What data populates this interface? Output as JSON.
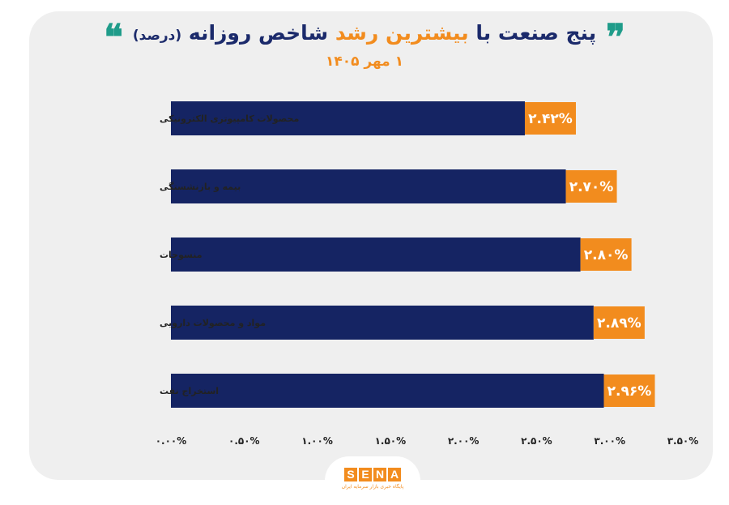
{
  "title": {
    "part1": "پنج صنعت با",
    "highlight": "بیشترین رشد",
    "part2": "شاخص روزانه",
    "unit": "(درصد)",
    "quote_open": "❞",
    "quote_close": "❝"
  },
  "subtitle": "۱ مهر ۱۴۰۵",
  "logo": {
    "letters": [
      "S",
      "E",
      "N",
      "A"
    ],
    "tagline": "پایگاه خبری بازار سرمایه ایران"
  },
  "colors": {
    "bar": "#152463",
    "label_bg": "#f28c1e",
    "label_text": "#ffffff",
    "title": "#1b2a6b",
    "accent": "#f28c1e",
    "quote": "#1f9c8a"
  },
  "chart_data": {
    "type": "bar",
    "orientation": "horizontal",
    "categories": [
      "محصولات کامپیوتری الکترونیکی",
      "بیمه و بازنشستگی",
      "منسوجات",
      "مواد و محصولات دارویی",
      "استخراج نفت"
    ],
    "values": [
      2.42,
      2.7,
      2.8,
      2.89,
      2.96
    ],
    "value_labels": [
      "۲.۴۲%",
      "۲.۷۰%",
      "۲.۸۰%",
      "۲.۸۹%",
      "۲.۹۶%"
    ],
    "xlim": [
      0,
      3.5
    ],
    "x_ticks": [
      0,
      0.5,
      1.0,
      1.5,
      2.0,
      2.5,
      3.0,
      3.5
    ],
    "x_tick_labels": [
      "۰.۰۰%",
      "۰.۵۰%",
      "۱.۰۰%",
      "۱.۵۰%",
      "۲.۰۰%",
      "۲.۵۰%",
      "۳.۰۰%",
      "۳.۵۰%"
    ],
    "grid": false,
    "legend": "none"
  }
}
